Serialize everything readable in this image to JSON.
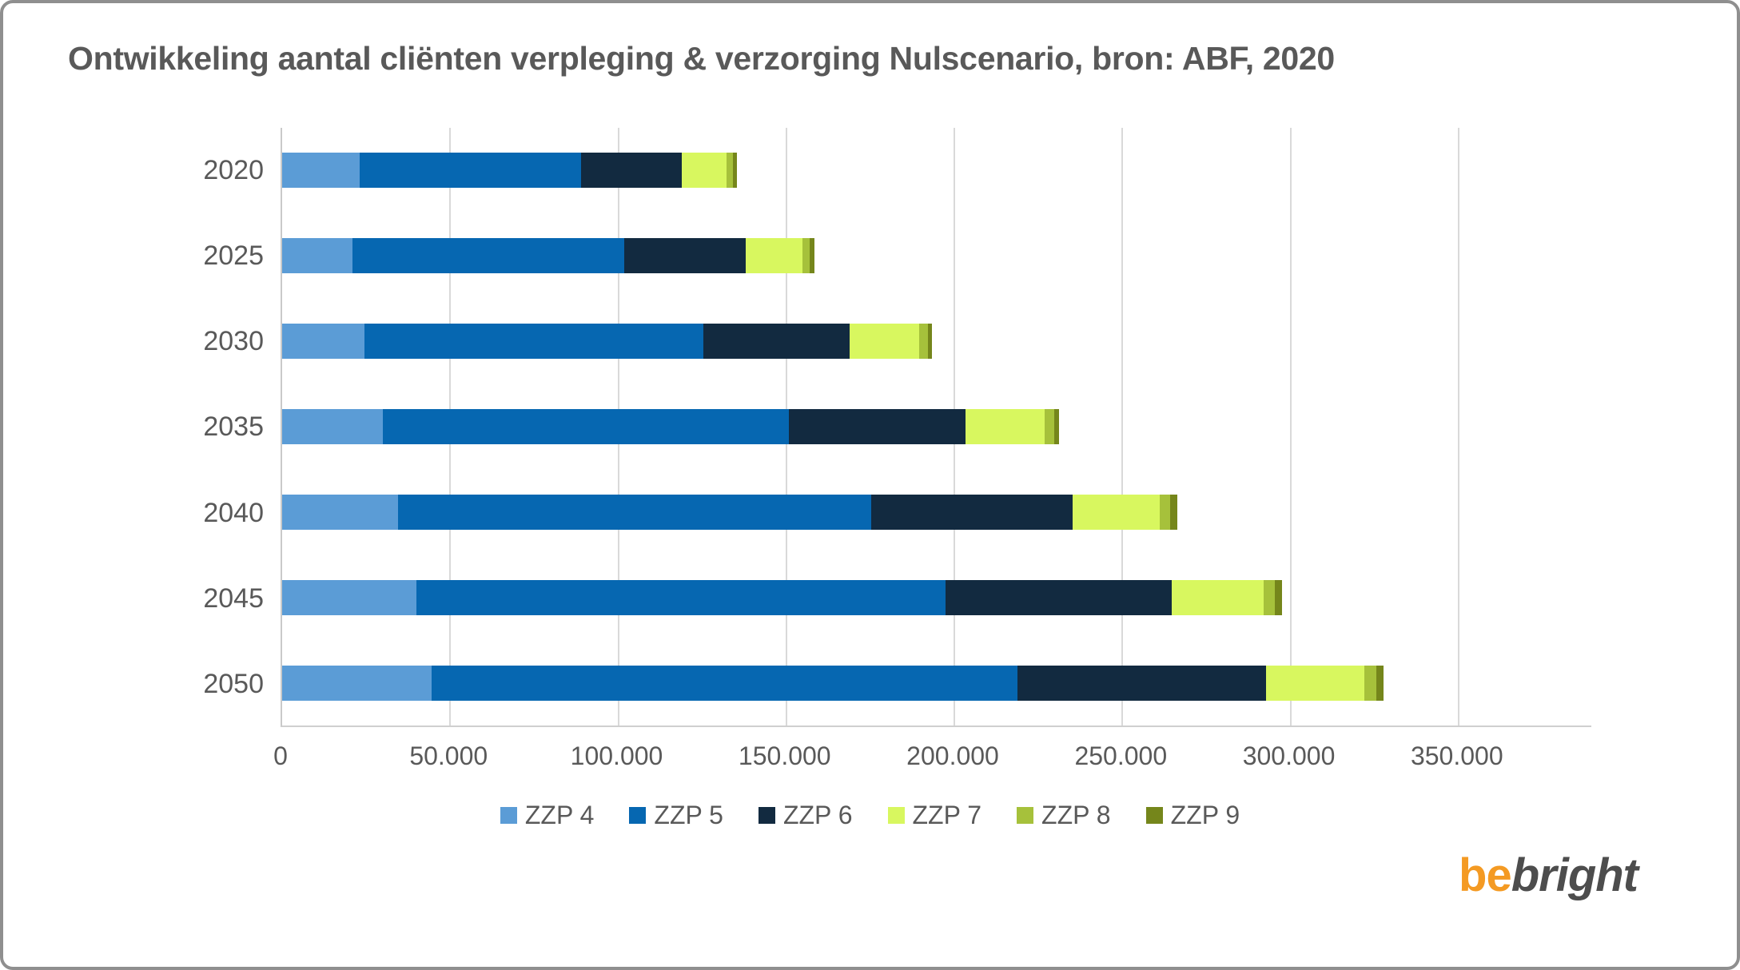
{
  "title": "Ontwikkeling aantal cliënten verpleging & verzorging Nulscenario, bron: ABF, 2020",
  "frame_border_color": "#8f8f8f",
  "text_color": "#595959",
  "gridline_color": "#d9d9d9",
  "chart_data": {
    "type": "bar",
    "orientation": "horizontal",
    "stacked": true,
    "title": "Ontwikkeling aantal cliënten verpleging & verzorging Nulscenario, bron: ABF, 2020",
    "categories": [
      "2020",
      "2025",
      "2030",
      "2035",
      "2040",
      "2045",
      "2050"
    ],
    "series": [
      {
        "name": "ZZP 4",
        "color": "#5b9cd6",
        "values": [
          23000,
          21000,
          24500,
          30000,
          34500,
          40000,
          44500
        ]
      },
      {
        "name": "ZZP 5",
        "color": "#0667b1",
        "values": [
          66000,
          81000,
          101000,
          121000,
          141000,
          157500,
          174500
        ]
      },
      {
        "name": "ZZP 6",
        "color": "#122a40",
        "values": [
          30000,
          36000,
          43500,
          52500,
          60000,
          67500,
          74000
        ]
      },
      {
        "name": "ZZP 7",
        "color": "#d8f75f",
        "values": [
          13500,
          17000,
          20700,
          23700,
          26000,
          27500,
          29500
        ]
      },
      {
        "name": "ZZP 8",
        "color": "#a6c13b",
        "values": [
          1800,
          2200,
          2700,
          2700,
          3100,
          3300,
          3500
        ]
      },
      {
        "name": "ZZP 9",
        "color": "#75861b",
        "values": [
          1300,
          1400,
          1200,
          1600,
          2100,
          2100,
          2200
        ]
      }
    ],
    "x_ticks": [
      "0",
      "50.000",
      "100.000",
      "150.000",
      "200.000",
      "250.000",
      "300.000",
      "350.000"
    ],
    "x_tick_values": [
      0,
      50000,
      100000,
      150000,
      200000,
      250000,
      300000,
      350000
    ],
    "xlim": [
      0,
      390000
    ],
    "grid": true,
    "legend_position": "bottom"
  },
  "logo": {
    "be": "be",
    "bright": "bright"
  }
}
